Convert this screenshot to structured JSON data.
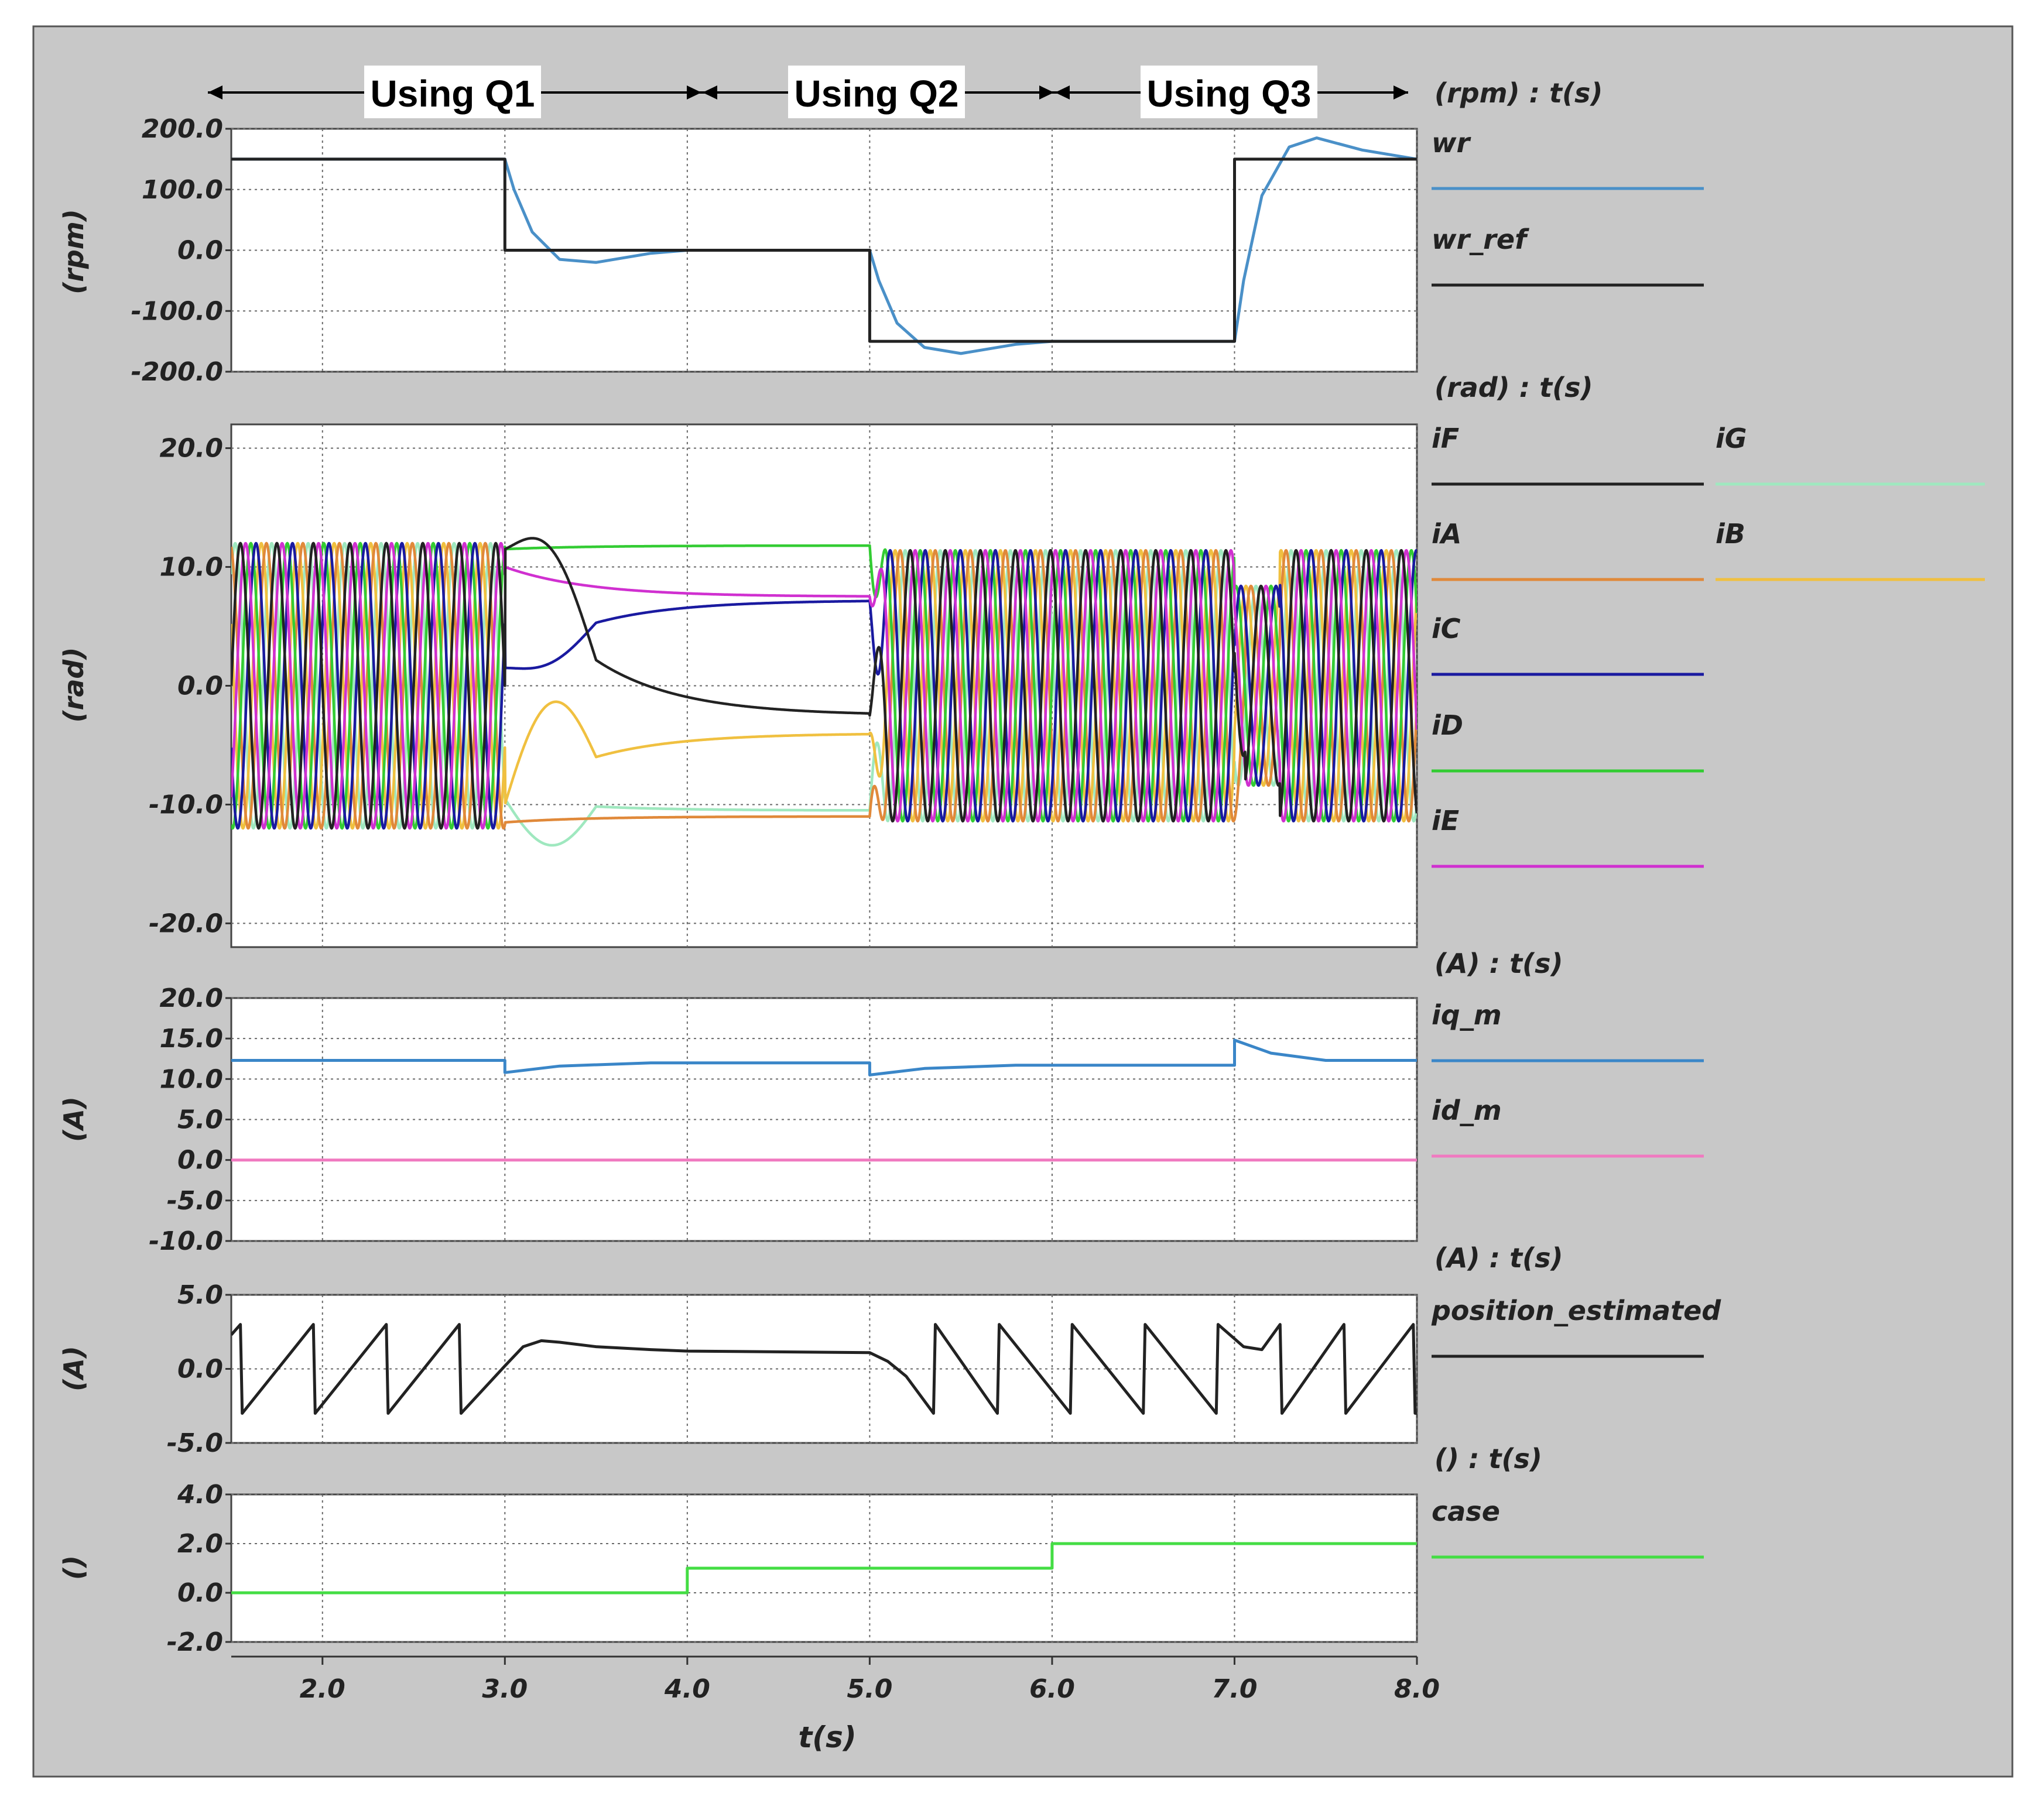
{
  "colors": {
    "panel_bg": "#c8c8c8",
    "plot_bg": "#ffffff",
    "grid": "#6a6a6a",
    "wr": "#4a90c8",
    "wr_ref": "#222222",
    "iF": "#222222",
    "iG": "#9fe8bf",
    "iA": "#e0893a",
    "iB": "#f0c040",
    "iC": "#1a1aa0",
    "iD": "#33cc33",
    "iE": "#d030d0",
    "iq_m": "#3a86c8",
    "id_m": "#f07ac0",
    "position_estimated": "#222222",
    "case": "#44dd44"
  },
  "banners": [
    {
      "label": "Using Q1"
    },
    {
      "label": "Using Q2"
    },
    {
      "label": "Using Q3"
    }
  ],
  "x_axis": {
    "title": "t(s)",
    "range": [
      1.5,
      8.0
    ],
    "ticks": [
      2.0,
      3.0,
      4.0,
      5.0,
      6.0,
      7.0,
      8.0
    ],
    "tick_labels": [
      "2.0",
      "3.0",
      "4.0",
      "5.0",
      "6.0",
      "7.0",
      "8.0"
    ]
  },
  "chart_data": [
    {
      "type": "line",
      "unit_title": "(rpm) : t(s)",
      "ylabel": "(rpm)",
      "ylim": [
        -200,
        200
      ],
      "ytick_labels": [
        "200.0",
        "100.0",
        "0.0",
        "-100.0",
        "-200.0"
      ],
      "yticks": [
        200,
        100,
        0,
        -100,
        -200
      ],
      "series": [
        {
          "name": "wr",
          "x": [
            1.5,
            3.0,
            3.05,
            3.15,
            3.3,
            3.5,
            3.8,
            4.0,
            5.0,
            5.05,
            5.15,
            5.3,
            5.5,
            5.8,
            6.0,
            7.0,
            7.05,
            7.15,
            7.3,
            7.45,
            7.7,
            8.0
          ],
          "values": [
            150,
            150,
            100,
            30,
            -15,
            -20,
            -5,
            0,
            0,
            -50,
            -120,
            -160,
            -170,
            -155,
            -150,
            -150,
            -50,
            90,
            170,
            185,
            165,
            150
          ]
        },
        {
          "name": "wr_ref",
          "x": [
            1.5,
            3.0,
            3.0,
            5.0,
            5.0,
            7.0,
            7.0,
            8.0
          ],
          "values": [
            150,
            150,
            0,
            0,
            -150,
            -150,
            150,
            150
          ]
        }
      ]
    },
    {
      "type": "line",
      "unit_title": "(rad) : t(s)",
      "ylabel": "(rad)",
      "ylim": [
        -22,
        22
      ],
      "ytick_labels": [
        "20.0",
        "10.0",
        "0.0",
        "-10.0",
        "-20.0"
      ],
      "yticks": [
        20,
        10,
        0,
        -10,
        -20
      ],
      "note": "seven phase currents, amplitude about 12; sinusoidal in 1.5-3.0 and 5.0-8.0, quasi-DC in 3.0-5.0",
      "series": [
        {
          "name": "iF"
        },
        {
          "name": "iG"
        },
        {
          "name": "iA"
        },
        {
          "name": "iB"
        },
        {
          "name": "iC"
        },
        {
          "name": "iD"
        },
        {
          "name": "iE"
        }
      ]
    },
    {
      "type": "line",
      "unit_title": "(A) : t(s)",
      "ylabel": "(A)",
      "ylim": [
        -10,
        20
      ],
      "ytick_labels": [
        "20.0",
        "15.0",
        "10.0",
        "5.0",
        "0.0",
        "-5.0",
        "-10.0"
      ],
      "yticks": [
        20,
        15,
        10,
        5,
        0,
        -5,
        -10
      ],
      "series": [
        {
          "name": "iq_m",
          "x": [
            1.5,
            3.0,
            3.0,
            3.3,
            3.8,
            5.0,
            5.0,
            5.3,
            5.8,
            7.0,
            7.0,
            7.2,
            7.5,
            8.0
          ],
          "values": [
            12.3,
            12.3,
            10.8,
            11.6,
            12.0,
            12.0,
            10.5,
            11.3,
            11.7,
            11.7,
            14.8,
            13.2,
            12.3,
            12.3
          ]
        },
        {
          "name": "id_m",
          "x": [
            1.5,
            8.0
          ],
          "values": [
            0,
            0
          ]
        }
      ]
    },
    {
      "type": "line",
      "unit_title": "(A) : t(s)",
      "ylabel": "(A)",
      "ylim": [
        -5,
        5
      ],
      "ytick_labels": [
        "5.0",
        "0.0",
        "-5.0"
      ],
      "yticks": [
        5,
        0,
        -5
      ],
      "series": [
        {
          "name": "position_estimated",
          "x": [
            1.5,
            1.55,
            1.56,
            1.95,
            1.96,
            2.35,
            2.36,
            2.75,
            2.76,
            3.0,
            3.1,
            3.2,
            3.3,
            3.5,
            3.8,
            4.0,
            5.0,
            5.1,
            5.2,
            5.35,
            5.36,
            5.7,
            5.71,
            6.1,
            6.11,
            6.5,
            6.51,
            6.9,
            6.91,
            7.05,
            7.15,
            7.25,
            7.26,
            7.6,
            7.61,
            7.98,
            7.99,
            8.0
          ],
          "values": [
            2.3,
            3.0,
            -3.0,
            3.0,
            -3.0,
            3.0,
            -3.0,
            3.0,
            -3.0,
            0.2,
            1.5,
            1.9,
            1.8,
            1.5,
            1.3,
            1.2,
            1.1,
            0.5,
            -0.5,
            -3.0,
            3.0,
            -3.0,
            3.0,
            -3.0,
            3.0,
            -3.0,
            3.0,
            -3.0,
            3.0,
            1.5,
            1.3,
            3.0,
            -3.0,
            3.0,
            -3.0,
            3.0,
            -3.0,
            -3.0
          ]
        }
      ]
    },
    {
      "type": "line",
      "unit_title": "() : t(s)",
      "ylabel": "()",
      "ylim": [
        -2,
        4
      ],
      "ytick_labels": [
        "4.0",
        "2.0",
        "0.0",
        "-2.0"
      ],
      "yticks": [
        4,
        2,
        0,
        -2
      ],
      "series": [
        {
          "name": "case",
          "x": [
            1.5,
            4.0,
            4.0,
            6.0,
            6.0,
            8.0
          ],
          "values": [
            0,
            0,
            1,
            1,
            2,
            2
          ]
        }
      ]
    }
  ]
}
